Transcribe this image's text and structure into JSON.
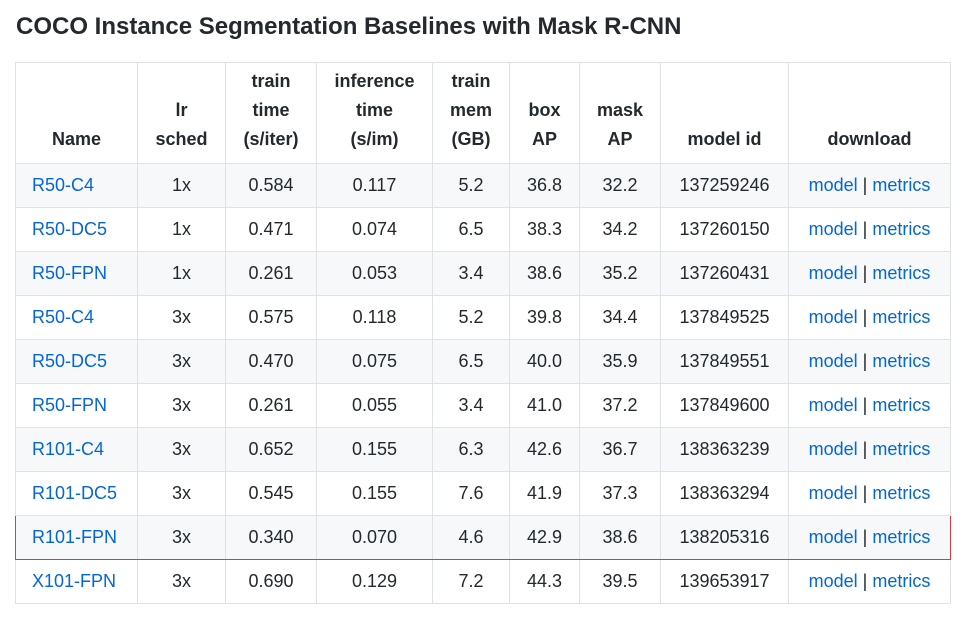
{
  "title": "COCO Instance Segmentation Baselines with Mask R-CNN",
  "colors": {
    "link": "#0366d6",
    "highlight_border": "#d73a49",
    "row_alt_bg": "#f6f8fa",
    "border": "#dfe2e5"
  },
  "table": {
    "headers": [
      [
        "Name"
      ],
      [
        "lr",
        "sched"
      ],
      [
        "train",
        "time",
        "(s/iter)"
      ],
      [
        "inference",
        "time",
        "(s/im)"
      ],
      [
        "train",
        "mem",
        "(GB)"
      ],
      [
        "box",
        "AP"
      ],
      [
        "mask",
        "AP"
      ],
      [
        "model id"
      ],
      [
        "download"
      ]
    ],
    "link_model_label": "model",
    "link_separator": "|",
    "link_metrics_label": "metrics",
    "highlighted_row": 8,
    "rows": [
      {
        "name": "R50-C4",
        "lr_sched": "1x",
        "train_time": "0.584",
        "inference_time": "0.117",
        "train_mem": "5.2",
        "box_ap": "36.8",
        "mask_ap": "32.2",
        "model_id": "137259246"
      },
      {
        "name": "R50-DC5",
        "lr_sched": "1x",
        "train_time": "0.471",
        "inference_time": "0.074",
        "train_mem": "6.5",
        "box_ap": "38.3",
        "mask_ap": "34.2",
        "model_id": "137260150"
      },
      {
        "name": "R50-FPN",
        "lr_sched": "1x",
        "train_time": "0.261",
        "inference_time": "0.053",
        "train_mem": "3.4",
        "box_ap": "38.6",
        "mask_ap": "35.2",
        "model_id": "137260431"
      },
      {
        "name": "R50-C4",
        "lr_sched": "3x",
        "train_time": "0.575",
        "inference_time": "0.118",
        "train_mem": "5.2",
        "box_ap": "39.8",
        "mask_ap": "34.4",
        "model_id": "137849525"
      },
      {
        "name": "R50-DC5",
        "lr_sched": "3x",
        "train_time": "0.470",
        "inference_time": "0.075",
        "train_mem": "6.5",
        "box_ap": "40.0",
        "mask_ap": "35.9",
        "model_id": "137849551"
      },
      {
        "name": "R50-FPN",
        "lr_sched": "3x",
        "train_time": "0.261",
        "inference_time": "0.055",
        "train_mem": "3.4",
        "box_ap": "41.0",
        "mask_ap": "37.2",
        "model_id": "137849600"
      },
      {
        "name": "R101-C4",
        "lr_sched": "3x",
        "train_time": "0.652",
        "inference_time": "0.155",
        "train_mem": "6.3",
        "box_ap": "42.6",
        "mask_ap": "36.7",
        "model_id": "138363239"
      },
      {
        "name": "R101-DC5",
        "lr_sched": "3x",
        "train_time": "0.545",
        "inference_time": "0.155",
        "train_mem": "7.6",
        "box_ap": "41.9",
        "mask_ap": "37.3",
        "model_id": "138363294"
      },
      {
        "name": "R101-FPN",
        "lr_sched": "3x",
        "train_time": "0.340",
        "inference_time": "0.070",
        "train_mem": "4.6",
        "box_ap": "42.9",
        "mask_ap": "38.6",
        "model_id": "138205316"
      },
      {
        "name": "X101-FPN",
        "lr_sched": "3x",
        "train_time": "0.690",
        "inference_time": "0.129",
        "train_mem": "7.2",
        "box_ap": "44.3",
        "mask_ap": "39.5",
        "model_id": "139653917"
      }
    ]
  }
}
